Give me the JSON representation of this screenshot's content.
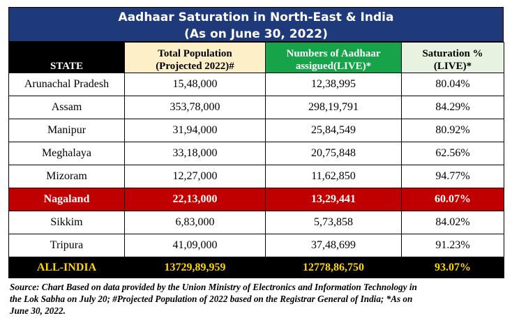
{
  "title": {
    "line1": "Aadhaar Saturation in North-East & India",
    "line2": "(As on June 30, 2022)"
  },
  "headers": {
    "state": "STATE",
    "population_line1": "Total Population",
    "population_line2": "(Projected 2022)#",
    "aadhaar_line1": "Numbers of Aadhaar",
    "aadhaar_line2": "assigued(LIVE)*",
    "saturation_line1": "Saturation %",
    "saturation_line2": "(LIVE)*"
  },
  "rows": [
    {
      "state": "Arunachal Pradesh",
      "population": "15,48,000",
      "aadhaar": "12,38,995",
      "saturation": "80.04%"
    },
    {
      "state": "Assam",
      "population": "353,78,000",
      "aadhaar": "298,19,791",
      "saturation": "84.29%"
    },
    {
      "state": "Manipur",
      "population": "31,94,000",
      "aadhaar": "25,84,549",
      "saturation": "80.92%"
    },
    {
      "state": "Meghalaya",
      "population": "33,18,000",
      "aadhaar": "20,75,848",
      "saturation": "62.56%"
    },
    {
      "state": "Mizoram",
      "population": "12,27,000",
      "aadhaar": "11,62,850",
      "saturation": "94.77%"
    },
    {
      "state": "Nagaland",
      "population": "22,13,000",
      "aadhaar": "13,29,441",
      "saturation": "60.07%"
    },
    {
      "state": "Sikkim",
      "population": "6,83,000",
      "aadhaar": "5,73,858",
      "saturation": "84.02%"
    },
    {
      "state": "Tripura",
      "population": "41,09,000",
      "aadhaar": "37,48,699",
      "saturation": "91.23%"
    }
  ],
  "total": {
    "state": "ALL-INDIA",
    "population": "13729,89,959",
    "aadhaar": "12778,86,750",
    "saturation": "93.07%"
  },
  "source": {
    "line1": "Source: Chart Based on data provided by the Union Ministry  of Electronics and Information Technology in",
    "line2": "the Lok Sabha on July 20; #Projected Population of 2022 based on the Registrar General of India; *As on",
    "line3": "June 30, 2022."
  },
  "colors": {
    "title_bg": "#1f3a7a",
    "highlight_row": "#c00000",
    "total_row_text": "#ffd400",
    "aadhaar_header": "#16a34a"
  }
}
